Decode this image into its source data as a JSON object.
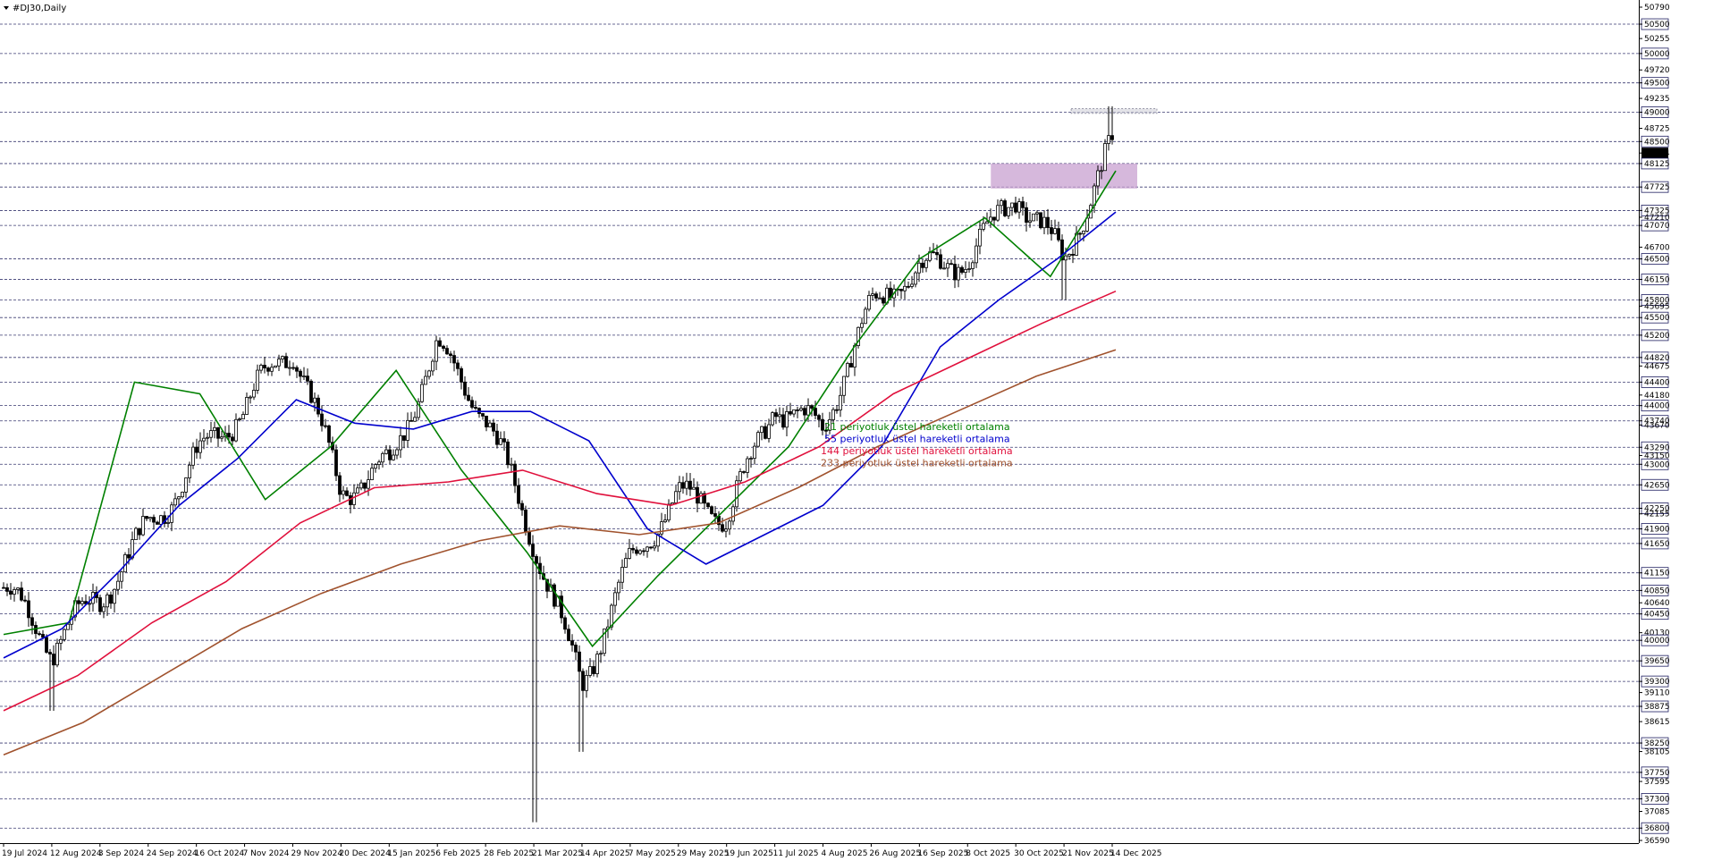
{
  "title": "#DJ30,Daily",
  "current_price": "48304",
  "chart_data": {
    "type": "candlestick",
    "symbol": "#DJ30",
    "timeframe": "Daily",
    "ylim": [
      36590,
      50790
    ],
    "grid": "dashed horizontal levels",
    "yticks": [
      "50790",
      "50500",
      "50255",
      "50000",
      "49720",
      "49500",
      "49235",
      "49000",
      "48725",
      "48500",
      "48304",
      "48125",
      "47725",
      "47325",
      "47210",
      "47070",
      "46700",
      "46500",
      "46150",
      "45800",
      "45695",
      "45500",
      "45200",
      "44820",
      "44675",
      "44400",
      "44180",
      "44000",
      "43740",
      "43670",
      "43290",
      "43150",
      "43000",
      "42650",
      "42250",
      "42155",
      "41900",
      "41650",
      "41150",
      "40850",
      "40640",
      "40450",
      "40130",
      "40000",
      "39650",
      "39300",
      "39110",
      "38875",
      "38615",
      "38250",
      "38105",
      "37750",
      "37595",
      "37300",
      "37085",
      "36800",
      "36590"
    ],
    "level_lines": [
      50500,
      50000,
      49500,
      49000,
      48500,
      48125,
      47725,
      47325,
      47070,
      46500,
      46150,
      45800,
      45500,
      45200,
      44820,
      44400,
      44000,
      43740,
      43290,
      43000,
      42650,
      42250,
      41900,
      41650,
      41150,
      40850,
      40450,
      40000,
      39650,
      39300,
      38875,
      38250,
      37750,
      37300,
      36800
    ],
    "xticks": [
      "19 Jul 2024",
      "12 Aug 2024",
      "3 Sep 2024",
      "24 Sep 2024",
      "16 Oct 2024",
      "7 Nov 2024",
      "29 Nov 2024",
      "20 Dec 2024",
      "15 Jan 2025",
      "6 Feb 2025",
      "28 Feb 2025",
      "21 Mar 2025",
      "14 Apr 2025",
      "7 May 2025",
      "29 May 2025",
      "19 Jun 2025",
      "11 Jul 2025",
      "4 Aug 2025",
      "26 Aug 2025",
      "16 Sep 2025",
      "8 Oct 2025",
      "30 Oct 2025",
      "21 Nov 2025",
      "14 Dec 2025"
    ],
    "close_anchors": [
      {
        "x": "19 Jul 2024",
        "y": 40900
      },
      {
        "x": "12 Aug 2024",
        "y": 39600
      },
      {
        "x": "3 Sep 2024",
        "y": 40700
      },
      {
        "x": "24 Sep 2024",
        "y": 42200
      },
      {
        "x": "16 Oct 2024",
        "y": 43200
      },
      {
        "x": "7 Nov 2024",
        "y": 43700
      },
      {
        "x": "29 Nov 2024",
        "y": 44900
      },
      {
        "x": "20 Dec 2024",
        "y": 42800
      },
      {
        "x": "15 Jan 2025",
        "y": 43200
      },
      {
        "x": "6 Feb 2025",
        "y": 44800
      },
      {
        "x": "28 Feb 2025",
        "y": 43600
      },
      {
        "x": "21 Mar 2025",
        "y": 41900
      },
      {
        "x": "14 Apr 2025",
        "y": 39500
      },
      {
        "x": "7 May 2025",
        "y": 41200
      },
      {
        "x": "29 May 2025",
        "y": 42200
      },
      {
        "x": "19 Jun 2025",
        "y": 42200
      },
      {
        "x": "11 Jul 2025",
        "y": 44300
      },
      {
        "x": "4 Aug 2025",
        "y": 43600
      },
      {
        "x": "26 Aug 2025",
        "y": 45400
      },
      {
        "x": "16 Sep 2025",
        "y": 46300
      },
      {
        "x": "8 Oct 2025",
        "y": 46800
      },
      {
        "x": "30 Oct 2025",
        "y": 47700
      },
      {
        "x": "21 Nov 2025",
        "y": 46200
      },
      {
        "x": "14 Dec 2025",
        "y": 48304
      }
    ],
    "extremes": [
      {
        "x": "12 Aug 2024",
        "low": 38800
      },
      {
        "x": "21 Mar 2025",
        "low": 36900
      },
      {
        "x": "14 Apr 2025",
        "low": 38100
      },
      {
        "x": "21 Nov 2025",
        "low": 45800
      },
      {
        "x": "14 Dec 2025",
        "high": 49100
      }
    ],
    "series": [
      {
        "name": "21 periyotluk üstel hareketli ortalama",
        "color": "#008000",
        "period": 21,
        "points": [
          [
            40100
          ],
          [
            40300
          ],
          [
            44400
          ],
          [
            44200
          ],
          [
            42400
          ],
          [
            43300
          ],
          [
            44600
          ],
          [
            42900
          ],
          [
            41500
          ],
          [
            39900
          ],
          [
            41100
          ],
          [
            42200
          ],
          [
            43300
          ],
          [
            45000
          ],
          [
            46500
          ],
          [
            47200
          ],
          [
            46200
          ],
          [
            48000
          ]
        ]
      },
      {
        "name": "55 periyotluk üstel hareketli ortalama",
        "color": "#0000cd",
        "period": 55,
        "points": [
          [
            39700
          ],
          [
            40200
          ],
          [
            41200
          ],
          [
            42300
          ],
          [
            43100
          ],
          [
            44100
          ],
          [
            43700
          ],
          [
            43600
          ],
          [
            43900
          ],
          [
            43900
          ],
          [
            43400
          ],
          [
            41900
          ],
          [
            41300
          ],
          [
            41800
          ],
          [
            42300
          ],
          [
            43300
          ],
          [
            45000
          ],
          [
            45800
          ],
          [
            46500
          ],
          [
            47300
          ]
        ]
      },
      {
        "name": "144 periyotluk üstel hareketli ortalama",
        "color": "#e0103c",
        "period": 144,
        "points": [
          [
            38800
          ],
          [
            39400
          ],
          [
            40300
          ],
          [
            41000
          ],
          [
            42000
          ],
          [
            42600
          ],
          [
            42700
          ],
          [
            42900
          ],
          [
            42500
          ],
          [
            42300
          ],
          [
            42700
          ],
          [
            43300
          ],
          [
            44200
          ],
          [
            44800
          ],
          [
            45400
          ],
          [
            45950
          ]
        ]
      },
      {
        "name": "233 periyotluk üstel hareketli ortalama",
        "color": "#a0522d",
        "period": 233,
        "points": [
          [
            38050
          ],
          [
            38600
          ],
          [
            39400
          ],
          [
            40200
          ],
          [
            40800
          ],
          [
            41300
          ],
          [
            41700
          ],
          [
            41950
          ],
          [
            41800
          ],
          [
            42000
          ],
          [
            42600
          ],
          [
            43300
          ],
          [
            43900
          ],
          [
            44500
          ],
          [
            44950
          ]
        ]
      }
    ],
    "zones": [
      {
        "name": "support-zone",
        "color": "#c8a0d0",
        "from": "8 Oct 2025",
        "to": "14 Dec 2025",
        "low": 47700,
        "high": 48125
      },
      {
        "name": "resistance-zone",
        "color": "#d0d0d8",
        "from": "21 Nov 2025",
        "to": "14 Dec 2025",
        "low": 48980,
        "high": 49060
      }
    ],
    "legend_position": "center"
  },
  "colors": {
    "price_label_bg": "#000000",
    "level_label_bg": "#ffffff",
    "grid": "#3a3a70",
    "candle": "#000000"
  }
}
